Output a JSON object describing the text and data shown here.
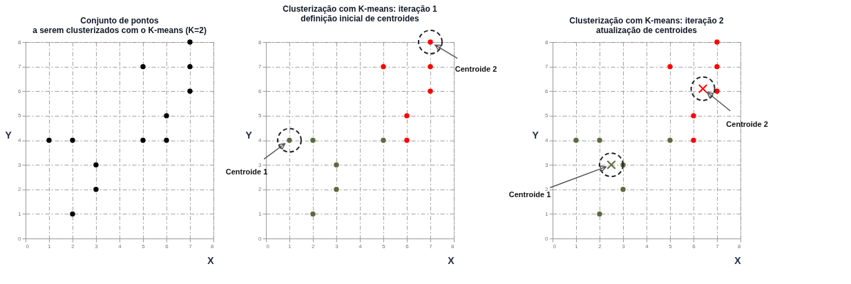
{
  "chart_data": [
    {
      "type": "scatter",
      "title": "Conjunto de pontos\na serem clusterizados com o K-means (K=2)",
      "xlabel": "X",
      "ylabel": "Y",
      "xlim": [
        0,
        8
      ],
      "ylim": [
        0,
        8
      ],
      "xticks": [
        0,
        1,
        2,
        3,
        4,
        5,
        6,
        7,
        8
      ],
      "yticks": [
        0,
        1,
        2,
        3,
        4,
        5,
        6,
        7,
        8
      ],
      "grid": true,
      "marker": "circle",
      "series": [
        {
          "color": "#000000",
          "x": [
            1,
            2,
            2,
            3,
            3,
            5,
            5,
            6,
            6,
            7,
            7,
            7
          ],
          "values": [
            4,
            4,
            1,
            3,
            2,
            7,
            4,
            5,
            4,
            8,
            7,
            6
          ]
        }
      ]
    },
    {
      "type": "scatter",
      "title": "Clusterização com K-means: iteração 1\ndefinição inicial de centroides",
      "xlabel": "X",
      "ylabel": "Y",
      "xlim": [
        0,
        8
      ],
      "ylim": [
        0,
        8
      ],
      "xticks": [
        0,
        1,
        2,
        3,
        4,
        5,
        6,
        7,
        8
      ],
      "yticks": [
        0,
        1,
        2,
        3,
        4,
        5,
        6,
        7,
        8
      ],
      "grid": true,
      "marker": "circle",
      "series": [
        {
          "color": "#5b6b3e",
          "x": [
            1,
            2,
            5,
            3,
            3,
            2
          ],
          "values": [
            4,
            4,
            4,
            3,
            2,
            1
          ]
        },
        {
          "color": "#ff0000",
          "x": [
            5,
            7,
            7,
            7,
            6,
            6
          ],
          "values": [
            7,
            8,
            7,
            6,
            5,
            4
          ]
        }
      ],
      "annotations": [
        {
          "text": "Centroide 1",
          "x": 1,
          "y": 4
        },
        {
          "text": "Centroide 2",
          "x": 7,
          "y": 8
        }
      ]
    },
    {
      "type": "scatter",
      "title": "Clusterização com K-means: iteração 2\natualização de centroides",
      "xlabel": "X",
      "ylabel": "Y",
      "xlim": [
        0,
        8
      ],
      "ylim": [
        0,
        8
      ],
      "xticks": [
        0,
        1,
        2,
        3,
        4,
        5,
        6,
        7,
        8
      ],
      "yticks": [
        0,
        1,
        2,
        3,
        4,
        5,
        6,
        7,
        8
      ],
      "grid": true,
      "marker": "circle",
      "series": [
        {
          "color": "#5b6b3e",
          "x": [
            1,
            2,
            5,
            3,
            3,
            2
          ],
          "values": [
            4,
            4,
            4,
            3,
            2,
            1
          ]
        },
        {
          "color": "#ff0000",
          "x": [
            5,
            7,
            7,
            7,
            6,
            6
          ],
          "values": [
            7,
            8,
            7,
            6,
            5,
            4
          ]
        },
        {
          "color": "#5b6b3e",
          "marker": "cross",
          "x": [
            2.5
          ],
          "values": [
            3
          ]
        },
        {
          "color": "#ff0000",
          "marker": "cross",
          "x": [
            6.4
          ],
          "values": [
            6.1
          ]
        }
      ],
      "annotations": [
        {
          "text": "Centroide 1",
          "x": 2.5,
          "y": 3
        },
        {
          "text": "Centroide 2",
          "x": 6.4,
          "y": 6.1
        }
      ]
    }
  ]
}
